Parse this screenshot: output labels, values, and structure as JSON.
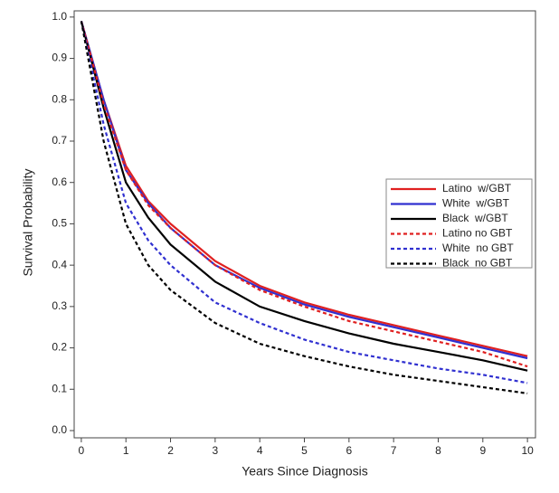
{
  "chart_data": {
    "type": "line",
    "xlabel": "Years Since Diagnosis",
    "ylabel": "Survival Probability",
    "x": [
      0,
      0.5,
      1,
      1.5,
      2,
      3,
      4,
      5,
      6,
      7,
      8,
      9,
      10
    ],
    "series": [
      {
        "name": "Latino  w/GBT",
        "color": "#e02020",
        "dash": false,
        "values": [
          0.99,
          0.8,
          0.64,
          0.555,
          0.5,
          0.41,
          0.35,
          0.31,
          0.28,
          0.255,
          0.23,
          0.205,
          0.18
        ]
      },
      {
        "name": "White  w/GBT",
        "color": "#3030d0",
        "dash": false,
        "values": [
          0.99,
          0.8,
          0.63,
          0.55,
          0.49,
          0.4,
          0.345,
          0.305,
          0.275,
          0.25,
          0.225,
          0.2,
          0.175
        ]
      },
      {
        "name": "Black  w/GBT",
        "color": "#000000",
        "dash": false,
        "values": [
          0.99,
          0.78,
          0.6,
          0.515,
          0.45,
          0.36,
          0.3,
          0.265,
          0.235,
          0.21,
          0.19,
          0.17,
          0.145
        ]
      },
      {
        "name": "Latino no GBT",
        "color": "#e02020",
        "dash": true,
        "values": [
          0.99,
          0.79,
          0.63,
          0.545,
          0.49,
          0.4,
          0.34,
          0.3,
          0.265,
          0.24,
          0.215,
          0.19,
          0.155
        ]
      },
      {
        "name": "White  no GBT",
        "color": "#3030d0",
        "dash": true,
        "values": [
          0.99,
          0.74,
          0.55,
          0.46,
          0.4,
          0.31,
          0.26,
          0.22,
          0.19,
          0.17,
          0.15,
          0.135,
          0.115
        ]
      },
      {
        "name": "Black  no GBT",
        "color": "#000000",
        "dash": true,
        "values": [
          0.99,
          0.7,
          0.5,
          0.4,
          0.34,
          0.26,
          0.21,
          0.18,
          0.155,
          0.135,
          0.12,
          0.105,
          0.09
        ]
      }
    ],
    "xlim": [
      -0.16,
      10.18
    ],
    "ylim": [
      -0.0175,
      1.015
    ],
    "xticks": [
      0,
      1,
      2,
      3,
      4,
      5,
      6,
      7,
      8,
      9,
      10
    ],
    "yticks": [
      {
        "value": 0,
        "label": "0.0"
      },
      0.1,
      0.2,
      0.3,
      0.4,
      0.5,
      0.6,
      0.7,
      0.8,
      0.9,
      {
        "value": 1,
        "label": "1.0"
      }
    ],
    "legend": "right"
  }
}
